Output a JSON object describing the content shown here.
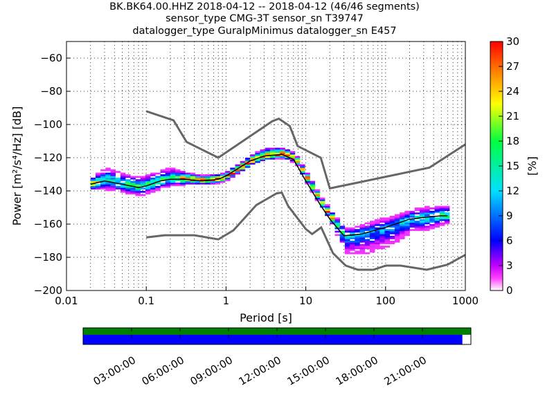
{
  "title_lines": [
    "BK.BK64.00.HHZ   2018-04-12 -- 2018-04-12  (46/46 segments)",
    "sensor_type CMG-3T sensor_sn T39747",
    "datalogger_type GuralpMinimus datalogger_sn E457"
  ],
  "chart_data": {
    "type": "heatmap",
    "xlabel": "Period [s]",
    "ylabel": "Power [m²/s⁴/Hz] [dB]",
    "xscale": "log",
    "xlim": [
      0.01,
      1000
    ],
    "ylim": [
      -200,
      -50
    ],
    "xticks": [
      {
        "v": 0.01,
        "label": "0.01"
      },
      {
        "v": 0.1,
        "label": "0.1"
      },
      {
        "v": 1,
        "label": "1"
      },
      {
        "v": 10,
        "label": "10"
      },
      {
        "v": 100,
        "label": "100"
      },
      {
        "v": 1000,
        "label": "1000"
      }
    ],
    "yticks": [
      {
        "v": -60,
        "label": "−60"
      },
      {
        "v": -80,
        "label": "−80"
      },
      {
        "v": -100,
        "label": "−100"
      },
      {
        "v": -120,
        "label": "−120"
      },
      {
        "v": -140,
        "label": "−140"
      },
      {
        "v": -160,
        "label": "−160"
      },
      {
        "v": -180,
        "label": "−180"
      },
      {
        "v": -200,
        "label": "−200"
      }
    ],
    "grid": true,
    "colorbar": {
      "label": "[%]",
      "range": [
        0,
        30
      ],
      "ticks": [
        "0",
        "3",
        "6",
        "9",
        "12",
        "15",
        "18",
        "21",
        "24",
        "27",
        "30"
      ]
    },
    "noise_models": {
      "high": [
        [
          0.1,
          -92
        ],
        [
          0.22,
          -97.5
        ],
        [
          0.32,
          -110.5
        ],
        [
          0.8,
          -120
        ],
        [
          3.8,
          -98
        ],
        [
          4.6,
          -96.5
        ],
        [
          6.3,
          -101
        ],
        [
          7.9,
          -113
        ],
        [
          15.4,
          -120
        ],
        [
          20,
          -138.5
        ],
        [
          354,
          -126
        ],
        [
          1000,
          -112
        ]
      ],
      "low": [
        [
          0.1,
          -168
        ],
        [
          0.17,
          -166.7
        ],
        [
          0.4,
          -166.7
        ],
        [
          0.8,
          -169.2
        ],
        [
          1.24,
          -163.7
        ],
        [
          2.4,
          -148.5
        ],
        [
          4.3,
          -141.5
        ],
        [
          5,
          -141
        ],
        [
          6,
          -149
        ],
        [
          10,
          -163
        ],
        [
          12,
          -166
        ],
        [
          15.6,
          -162
        ],
        [
          21.9,
          -177.5
        ],
        [
          31.6,
          -185
        ],
        [
          45,
          -187.5
        ],
        [
          70,
          -187.5
        ],
        [
          101,
          -185
        ],
        [
          154,
          -185
        ],
        [
          328,
          -187.5
        ],
        [
          600,
          -184.4
        ],
        [
          1000,
          -178.5
        ]
      ]
    },
    "mean_curve": [
      [
        0.02,
        -136
      ],
      [
        0.03,
        -134
      ],
      [
        0.05,
        -136
      ],
      [
        0.08,
        -138
      ],
      [
        0.1,
        -137
      ],
      [
        0.15,
        -134
      ],
      [
        0.2,
        -133
      ],
      [
        0.3,
        -133
      ],
      [
        0.5,
        -134
      ],
      [
        0.8,
        -133
      ],
      [
        1,
        -131
      ],
      [
        2,
        -122
      ],
      [
        3,
        -119
      ],
      [
        5,
        -118
      ],
      [
        7,
        -121
      ],
      [
        10,
        -134
      ],
      [
        15,
        -148
      ],
      [
        20,
        -157
      ],
      [
        30,
        -167
      ],
      [
        50,
        -166
      ],
      [
        100,
        -162
      ],
      [
        200,
        -157
      ],
      [
        300,
        -156
      ],
      [
        500,
        -155
      ],
      [
        600,
        -155
      ]
    ],
    "spread": [
      [
        0.02,
        3,
        3
      ],
      [
        0.03,
        7,
        5
      ],
      [
        0.05,
        5,
        5
      ],
      [
        0.08,
        5,
        5
      ],
      [
        0.1,
        6,
        4
      ],
      [
        0.15,
        6,
        4
      ],
      [
        0.2,
        6,
        4
      ],
      [
        0.3,
        3,
        3
      ],
      [
        0.5,
        2,
        2
      ],
      [
        1,
        2,
        2
      ],
      [
        2,
        3,
        2
      ],
      [
        3,
        4,
        2
      ],
      [
        5,
        3,
        2
      ],
      [
        7,
        2,
        2
      ],
      [
        10,
        3,
        2
      ],
      [
        15,
        2,
        2
      ],
      [
        20,
        3,
        3
      ],
      [
        30,
        3,
        11
      ],
      [
        50,
        5,
        12
      ],
      [
        100,
        5,
        12
      ],
      [
        200,
        5,
        8
      ],
      [
        300,
        5,
        8
      ],
      [
        600,
        5,
        4
      ]
    ]
  },
  "timeline": {
    "ticks": [
      "03:00:00",
      "06:00:00",
      "09:00:00",
      "12:00:00",
      "15:00:00",
      "18:00:00",
      "21:00:00"
    ],
    "coverage_fraction": 0.978,
    "green": "#008000",
    "blue": "#0000ff"
  }
}
